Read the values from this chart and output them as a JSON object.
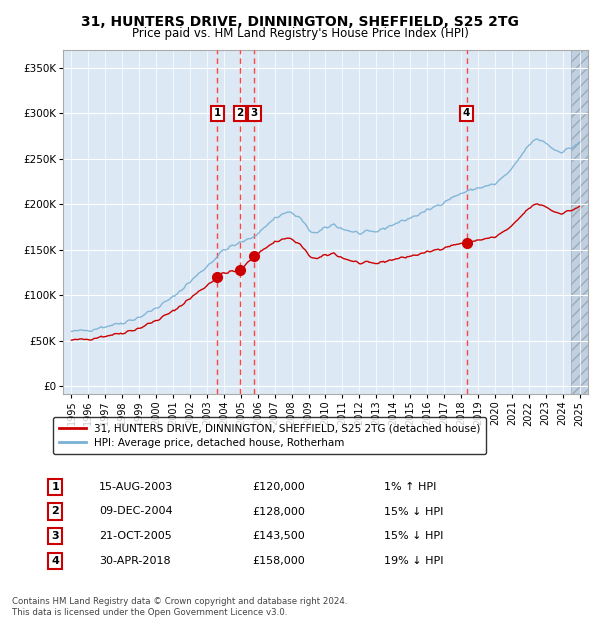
{
  "title_line1": "31, HUNTERS DRIVE, DINNINGTON, SHEFFIELD, S25 2TG",
  "title_line2": "Price paid vs. HM Land Registry's House Price Index (HPI)",
  "legend_red": "31, HUNTERS DRIVE, DINNINGTON, SHEFFIELD, S25 2TG (detached house)",
  "legend_blue": "HPI: Average price, detached house, Rotherham",
  "footer": "Contains HM Land Registry data © Crown copyright and database right 2024.\nThis data is licensed under the Open Government Licence v3.0.",
  "transactions": [
    {
      "num": 1,
      "date": "15-AUG-2003",
      "price": 120000,
      "hpi_diff": "1% ↑ HPI",
      "year": 2003.62
    },
    {
      "num": 2,
      "date": "09-DEC-2004",
      "price": 128000,
      "hpi_diff": "15% ↓ HPI",
      "year": 2004.94
    },
    {
      "num": 3,
      "date": "21-OCT-2005",
      "price": 143500,
      "hpi_diff": "15% ↓ HPI",
      "year": 2005.8
    },
    {
      "num": 4,
      "date": "30-APR-2018",
      "price": 158000,
      "hpi_diff": "19% ↓ HPI",
      "year": 2018.33
    }
  ],
  "yticks": [
    0,
    50000,
    100000,
    150000,
    200000,
    250000,
    300000,
    350000
  ],
  "ylabels": [
    "£0",
    "£50K",
    "£100K",
    "£150K",
    "£200K",
    "£250K",
    "£300K",
    "£350K"
  ],
  "xlim": [
    1994.5,
    2025.5
  ],
  "ylim": [
    -8000,
    370000
  ],
  "bg_color": "#dce9f5",
  "hatch_color": "#c8d8e8",
  "grid_color": "#ffffff",
  "red_color": "#cc0000",
  "blue_color": "#7ab0d4",
  "dashed_color": "#ff4444"
}
